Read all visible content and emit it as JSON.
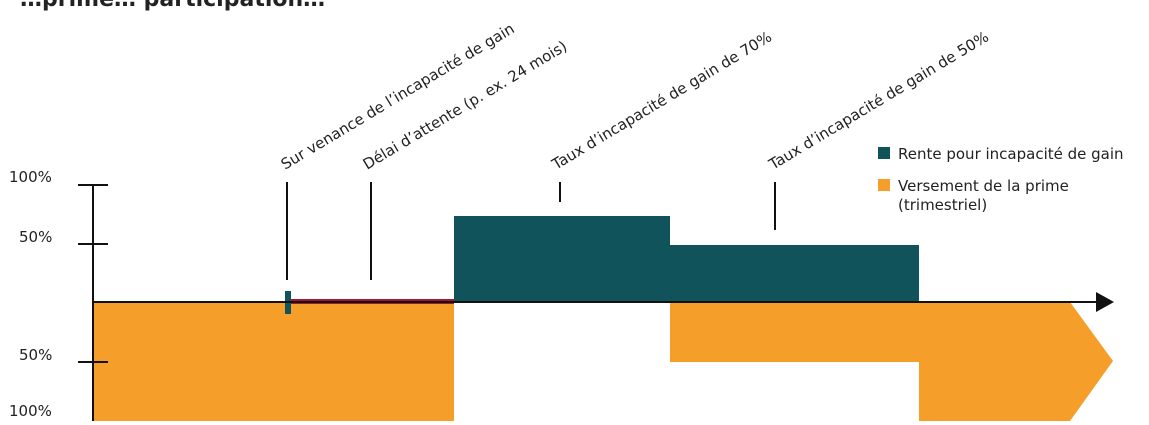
{
  "title": "…prime… participation…",
  "colors": {
    "teal": "#11535a",
    "orange": "#f59f2a",
    "red": "#9d1b32",
    "axis": "#111111"
  },
  "y_axis": {
    "top_labels": [
      "100%",
      "50%"
    ],
    "bottom_labels": [
      "50%",
      "100%"
    ]
  },
  "annotations": [
    "Sur venance de l’incapacité de gain",
    "Délai d’attente (p. ex. 24 mois)",
    "Taux d’incapacité de gain de 70%",
    "Taux d’incapacité de gain de 50%"
  ],
  "legend": [
    {
      "label": "Rente pour incapacité de gain",
      "color": "#11535a"
    },
    {
      "label": "Versement de la prime",
      "sublabel": "(trimestriel)",
      "color": "#f59f2a"
    }
  ],
  "segments": {
    "rente": [
      {
        "phase": "after waiting period",
        "level_percent": 70
      },
      {
        "phase": "later",
        "level_percent": 50
      }
    ],
    "prime": [
      {
        "phase": "before incapacity and during waiting period",
        "level_percent": 100
      },
      {
        "phase": "70% incapacity",
        "level_percent": 0
      },
      {
        "phase": "50% incapacity",
        "level_percent": 50
      },
      {
        "phase": "continuation",
        "level_percent": 100
      }
    ]
  }
}
